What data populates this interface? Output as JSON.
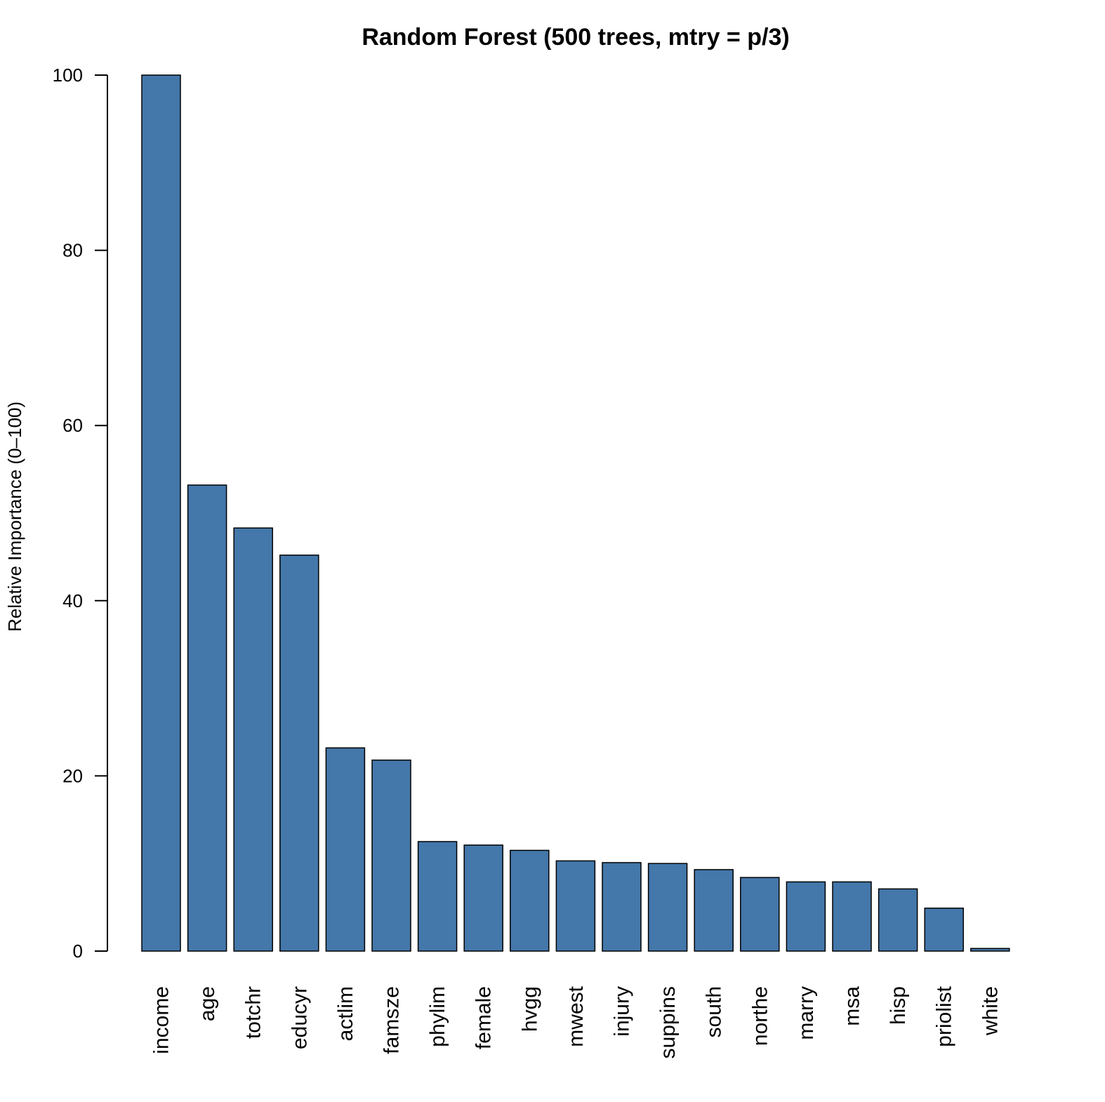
{
  "chart_data": {
    "type": "bar",
    "title": "Random Forest (500 trees, mtry = p/3)",
    "xlabel": "",
    "ylabel": "Relative Importance (0–100)",
    "ylim": [
      0,
      100
    ],
    "yticks": [
      "0",
      "20",
      "40",
      "60",
      "80",
      "100"
    ],
    "grid": false,
    "bar_color": "#4477AA",
    "categories": [
      "income",
      "age",
      "totchr",
      "educyr",
      "actlim",
      "famsze",
      "phylim",
      "female",
      "hvgg",
      "mwest",
      "injury",
      "suppins",
      "south",
      "northe",
      "marry",
      "msa",
      "hisp",
      "priolist",
      "white"
    ],
    "values": [
      100,
      53.2,
      48.3,
      45.2,
      23.2,
      21.8,
      12.5,
      12.1,
      11.5,
      10.3,
      10.1,
      10.0,
      9.3,
      8.4,
      7.9,
      7.9,
      7.1,
      4.9,
      0.3
    ]
  }
}
